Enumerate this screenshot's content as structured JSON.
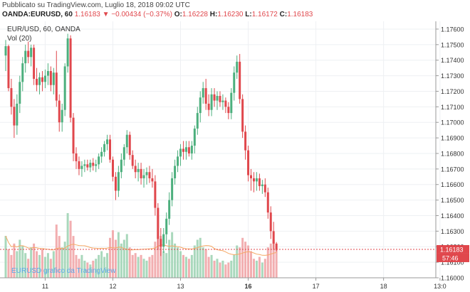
{
  "header": {
    "published": "Pubblicato su TradingView.com, Luglio 18, 2018 09:02 UTC",
    "symbol": "OANDA:EURUSD, 60",
    "last": "1.16183",
    "change_arrow": "▼",
    "change": "−0.00434 (−0.37%)",
    "o_label": "O:",
    "o_value": "1.16228",
    "h_label": "H:",
    "h_value": "1.16230",
    "l_label": "L:",
    "l_value": "1.16172",
    "c_label": "C:",
    "c_value": "1.16183"
  },
  "legend": {
    "title": "EUR/USD, 60, OANDA",
    "vol": "Vol (20)"
  },
  "watermark": "EURUSD grafico da TradingView",
  "colors": {
    "up": "#4caf7d",
    "down": "#e0474c",
    "up_vol": "#a9d8bc",
    "down_vol": "#f2aeb0",
    "ma": "#f5a864",
    "price_tag": "#e0474c"
  },
  "chart_data": {
    "type": "candlestick",
    "ylim": [
      1.16,
      1.1765
    ],
    "y_ticks": [
      "1.17600",
      "1.17500",
      "1.17400",
      "1.17300",
      "1.17200",
      "1.17100",
      "1.17000",
      "1.16900",
      "1.16800",
      "1.16700",
      "1.16600",
      "1.16500",
      "1.16400",
      "1.16300",
      "1.16200",
      "1.16100",
      "1.16000"
    ],
    "x_ticks": [
      {
        "label": "11",
        "idx": 14,
        "bold": false
      },
      {
        "label": "12",
        "idx": 38,
        "bold": false
      },
      {
        "label": "13",
        "idx": 62,
        "bold": false
      },
      {
        "label": "16",
        "idx": 86,
        "bold": true
      },
      {
        "label": "17",
        "idx": 110,
        "bold": false
      },
      {
        "label": "18",
        "idx": 134,
        "bold": false
      },
      {
        "label": "13:0",
        "idx": 154,
        "bold": false
      }
    ],
    "last_price": "1.16183",
    "countdown": "57:46",
    "candles": [
      [
        1.1743,
        1.1753,
        1.1733,
        1.1749
      ],
      [
        1.1749,
        1.175,
        1.172,
        1.1722
      ],
      [
        1.1722,
        1.1728,
        1.1705,
        1.171
      ],
      [
        1.171,
        1.1715,
        1.169,
        1.1698
      ],
      [
        1.1698,
        1.1718,
        1.1692,
        1.1712
      ],
      [
        1.1712,
        1.173,
        1.1706,
        1.1726
      ],
      [
        1.1726,
        1.1742,
        1.172,
        1.1738
      ],
      [
        1.1738,
        1.175,
        1.1732,
        1.1746
      ],
      [
        1.1746,
        1.1752,
        1.1738,
        1.1742
      ],
      [
        1.1742,
        1.175,
        1.1736,
        1.1748
      ],
      [
        1.1748,
        1.175,
        1.1724,
        1.1728
      ],
      [
        1.1728,
        1.1735,
        1.172,
        1.1724
      ],
      [
        1.1724,
        1.1732,
        1.1718,
        1.1729
      ],
      [
        1.1729,
        1.1733,
        1.172,
        1.1726
      ],
      [
        1.1726,
        1.1734,
        1.1722,
        1.173
      ],
      [
        1.173,
        1.1738,
        1.1724,
        1.1733
      ],
      [
        1.1733,
        1.1736,
        1.172,
        1.1724
      ],
      [
        1.1724,
        1.1735,
        1.1718,
        1.1732
      ],
      [
        1.1732,
        1.1746,
        1.171,
        1.1714
      ],
      [
        1.1714,
        1.1718,
        1.1694,
        1.17
      ],
      [
        1.17,
        1.1712,
        1.1694,
        1.1708
      ],
      [
        1.1708,
        1.1738,
        1.1704,
        1.1736
      ],
      [
        1.1736,
        1.1757,
        1.1732,
        1.1754
      ],
      [
        1.1754,
        1.1756,
        1.17,
        1.1703
      ],
      [
        1.1703,
        1.1706,
        1.1675,
        1.168
      ],
      [
        1.168,
        1.1684,
        1.167,
        1.1675
      ],
      [
        1.1675,
        1.1678,
        1.1666,
        1.167
      ],
      [
        1.167,
        1.1675,
        1.1665,
        1.1672
      ],
      [
        1.1672,
        1.1676,
        1.1668,
        1.1673
      ],
      [
        1.1673,
        1.1676,
        1.1669,
        1.1671
      ],
      [
        1.1671,
        1.1676,
        1.1668,
        1.1674
      ],
      [
        1.1674,
        1.1677,
        1.1669,
        1.1672
      ],
      [
        1.1672,
        1.1676,
        1.1668,
        1.1673
      ],
      [
        1.1673,
        1.168,
        1.167,
        1.1678
      ],
      [
        1.1678,
        1.1684,
        1.1674,
        1.1681
      ],
      [
        1.1681,
        1.1688,
        1.1678,
        1.1686
      ],
      [
        1.1686,
        1.1692,
        1.1682,
        1.1689
      ],
      [
        1.1689,
        1.1692,
        1.1674,
        1.1676
      ],
      [
        1.1676,
        1.1678,
        1.1662,
        1.1665
      ],
      [
        1.1665,
        1.1668,
        1.165,
        1.1656
      ],
      [
        1.1656,
        1.1672,
        1.1652,
        1.1668
      ],
      [
        1.1668,
        1.168,
        1.1664,
        1.1676
      ],
      [
        1.1676,
        1.1686,
        1.1672,
        1.1684
      ],
      [
        1.1684,
        1.1695,
        1.168,
        1.1692
      ],
      [
        1.1692,
        1.1694,
        1.1676,
        1.1679
      ],
      [
        1.1679,
        1.1682,
        1.167,
        1.1672
      ],
      [
        1.1672,
        1.1676,
        1.1664,
        1.1668
      ],
      [
        1.1668,
        1.1674,
        1.1662,
        1.167
      ],
      [
        1.167,
        1.1674,
        1.166,
        1.1664
      ],
      [
        1.1664,
        1.167,
        1.1658,
        1.1666
      ],
      [
        1.1666,
        1.1671,
        1.166,
        1.1668
      ],
      [
        1.1668,
        1.1672,
        1.1661,
        1.1664
      ],
      [
        1.1664,
        1.167,
        1.1658,
        1.1662
      ],
      [
        1.1662,
        1.1666,
        1.164,
        1.1645
      ],
      [
        1.1645,
        1.1648,
        1.1618,
        1.1625
      ],
      [
        1.1625,
        1.1632,
        1.1614,
        1.162
      ],
      [
        1.162,
        1.1632,
        1.1616,
        1.1628
      ],
      [
        1.1628,
        1.1642,
        1.1622,
        1.1638
      ],
      [
        1.1638,
        1.1655,
        1.1634,
        1.165
      ],
      [
        1.165,
        1.1668,
        1.1646,
        1.1664
      ],
      [
        1.1664,
        1.1676,
        1.166,
        1.1672
      ],
      [
        1.1672,
        1.1682,
        1.1668,
        1.1678
      ],
      [
        1.1678,
        1.1686,
        1.1672,
        1.1683
      ],
      [
        1.1683,
        1.1688,
        1.1676,
        1.1681
      ],
      [
        1.1681,
        1.1688,
        1.1676,
        1.1684
      ],
      [
        1.1684,
        1.1688,
        1.1678,
        1.168
      ],
      [
        1.168,
        1.1688,
        1.1676,
        1.1685
      ],
      [
        1.1685,
        1.1698,
        1.168,
        1.1696
      ],
      [
        1.1696,
        1.171,
        1.1692,
        1.1706
      ],
      [
        1.1706,
        1.172,
        1.17,
        1.1716
      ],
      [
        1.1716,
        1.1726,
        1.1712,
        1.1722
      ],
      [
        1.1722,
        1.1728,
        1.1708,
        1.1712
      ],
      [
        1.1712,
        1.1718,
        1.1704,
        1.1708
      ],
      [
        1.1708,
        1.1722,
        1.1704,
        1.1718
      ],
      [
        1.1718,
        1.1722,
        1.171,
        1.1714
      ],
      [
        1.1714,
        1.172,
        1.1708,
        1.1717
      ],
      [
        1.1717,
        1.172,
        1.171,
        1.1713
      ],
      [
        1.1713,
        1.1718,
        1.1708,
        1.1714
      ],
      [
        1.1714,
        1.1716,
        1.1706,
        1.171
      ],
      [
        1.171,
        1.1713,
        1.1702,
        1.1706
      ],
      [
        1.1706,
        1.1722,
        1.1702,
        1.1719
      ],
      [
        1.1719,
        1.1736,
        1.1714,
        1.1732
      ],
      [
        1.1732,
        1.1743,
        1.1728,
        1.1739
      ],
      [
        1.1739,
        1.1744,
        1.1712,
        1.1715
      ],
      [
        1.1715,
        1.1718,
        1.169,
        1.1694
      ],
      [
        1.1694,
        1.1698,
        1.1676,
        1.1682
      ],
      [
        1.1682,
        1.1685,
        1.1662,
        1.1666
      ],
      [
        1.1666,
        1.167,
        1.1656,
        1.1664
      ],
      [
        1.1664,
        1.1668,
        1.1655,
        1.1662
      ],
      [
        1.1662,
        1.1668,
        1.1656,
        1.1664
      ],
      [
        1.1664,
        1.1667,
        1.1656,
        1.1659
      ],
      [
        1.1659,
        1.1663,
        1.1654,
        1.166
      ],
      [
        1.166,
        1.1664,
        1.1652,
        1.1655
      ],
      [
        1.1655,
        1.1658,
        1.1638,
        1.1642
      ],
      [
        1.1642,
        1.1646,
        1.1625,
        1.163
      ],
      [
        1.163,
        1.1636,
        1.1618,
        1.1622
      ],
      [
        1.1622,
        1.1623,
        1.1617,
        1.1618
      ]
    ],
    "volumes": [
      0.22,
      0.15,
      0.12,
      0.18,
      0.14,
      0.2,
      0.17,
      0.13,
      0.1,
      0.16,
      0.18,
      0.14,
      0.12,
      0.15,
      0.11,
      0.13,
      0.1,
      0.14,
      0.28,
      0.22,
      0.16,
      0.19,
      0.34,
      0.3,
      0.22,
      0.12,
      0.1,
      0.12,
      0.09,
      0.08,
      0.07,
      0.09,
      0.1,
      0.12,
      0.14,
      0.11,
      0.13,
      0.21,
      0.25,
      0.2,
      0.24,
      0.18,
      0.2,
      0.23,
      0.16,
      0.12,
      0.13,
      0.11,
      0.12,
      0.1,
      0.09,
      0.11,
      0.12,
      0.19,
      0.33,
      0.22,
      0.14,
      0.13,
      0.2,
      0.24,
      0.18,
      0.16,
      0.14,
      0.12,
      0.11,
      0.1,
      0.12,
      0.17,
      0.2,
      0.21,
      0.16,
      0.15,
      0.11,
      0.12,
      0.09,
      0.1,
      0.08,
      0.09,
      0.07,
      0.08,
      0.09,
      0.12,
      0.17,
      0.16,
      0.21,
      0.19,
      0.17,
      0.14,
      0.1,
      0.09,
      0.11,
      0.08,
      0.1,
      0.16,
      0.18,
      0.2,
      0.15
    ]
  }
}
